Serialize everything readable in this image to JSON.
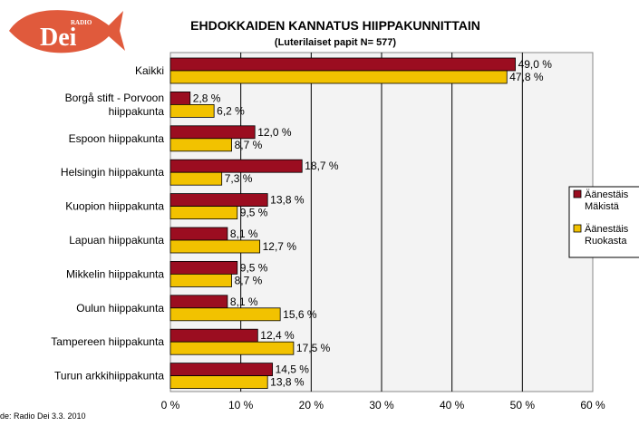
{
  "logo": {
    "small_text": "RADIO",
    "big_text": "Dei",
    "color": "#e05a3c"
  },
  "chart_data": {
    "type": "bar",
    "orientation": "horizontal",
    "title": "EHDOKKAIDEN KANNATUS HIIPPAKUNNITTAIN",
    "subtitle": "(Luterilaiset papit N= 577)",
    "categories": [
      [
        "Kaikki"
      ],
      [
        "Borgå stift - Porvoon",
        "hiippakunta"
      ],
      [
        "Espoon hiippakunta"
      ],
      [
        "Helsingin hiippakunta"
      ],
      [
        "Kuopion hiippakunta"
      ],
      [
        "Lapuan hiippakunta"
      ],
      [
        "Mikkelin hiippakunta"
      ],
      [
        "Oulun hiippakunta"
      ],
      [
        "Tampereen hiippakunta"
      ],
      [
        "Turun arkkihiippakunta"
      ]
    ],
    "series": [
      {
        "name": "Äänestäis Mäkistä",
        "legend_lines": [
          "Äänestäis",
          "Mäkistä"
        ],
        "color": "#9b0d20",
        "values": [
          49.0,
          2.8,
          12.0,
          18.7,
          13.8,
          8.1,
          9.5,
          8.1,
          12.4,
          14.5
        ],
        "labels": [
          "49,0 %",
          "2,8 %",
          "12,0 %",
          "18,7 %",
          "13,8 %",
          "8,1 %",
          "9,5 %",
          "8,1 %",
          "12,4 %",
          "14,5 %"
        ]
      },
      {
        "name": "Äänestäis Ruokasta",
        "legend_lines": [
          "Äänestäis",
          "Ruokasta"
        ],
        "color": "#f2c200",
        "values": [
          47.8,
          6.2,
          8.7,
          7.3,
          9.5,
          12.7,
          8.7,
          15.6,
          17.5,
          13.8
        ],
        "labels": [
          "47,8 %",
          "6,2 %",
          "8,7 %",
          "7,3 %",
          "9,5 %",
          "12,7 %",
          "8,7 %",
          "15,6 %",
          "17,5 %",
          "13,8 %"
        ]
      }
    ],
    "xlim": [
      0,
      60
    ],
    "xticks": [
      0,
      10,
      20,
      30,
      40,
      50,
      60
    ],
    "xtick_labels": [
      "0 %",
      "10 %",
      "20 %",
      "30 %",
      "40 %",
      "50 %",
      "60 %"
    ],
    "grid": true,
    "legend_position": "right"
  },
  "source": "de: Radio Dei 3.3. 2010"
}
